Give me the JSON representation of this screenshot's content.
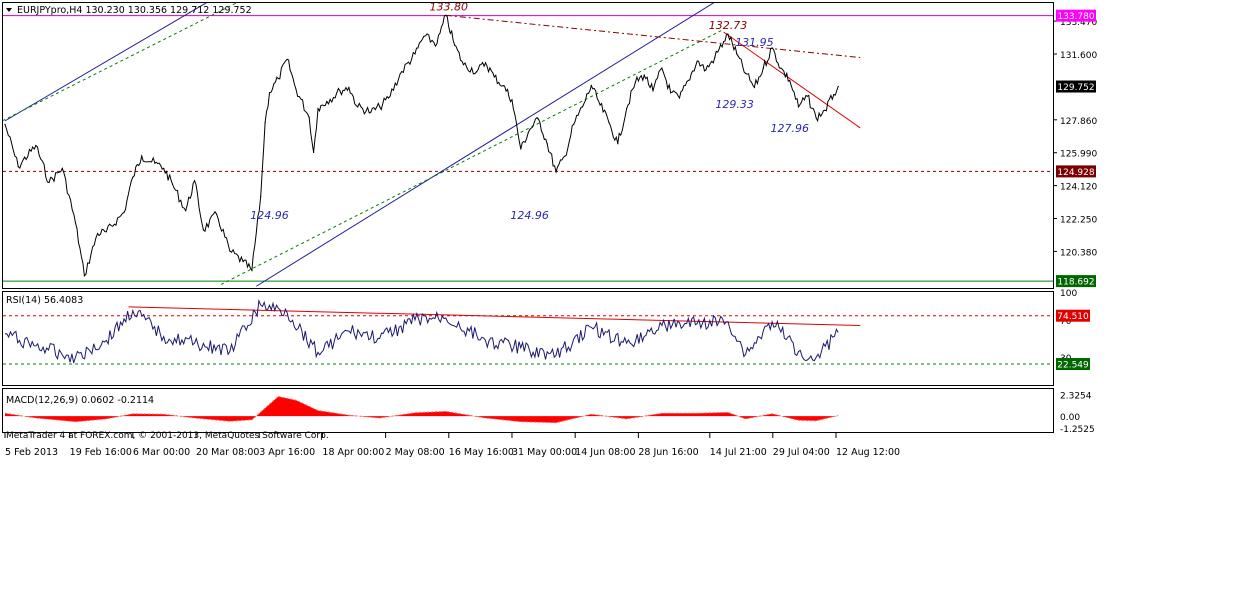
{
  "colors": {
    "price_line": "#000000",
    "level_red": "#8b0000",
    "trend_red": "#e00000",
    "trend_blue": "#1c1c9a",
    "channel_green": "#008000",
    "resistance_magenta": "#d000d0",
    "label_blue": "#2a2ab0",
    "macd_hist": "#ff0000",
    "rsi_line": "#1a1a6e",
    "badge_magenta": "#ff00ff",
    "badge_dark": "#000000",
    "badge_darkred": "#7a0000",
    "badge_green": "#006600",
    "badge_red": "#e00000"
  },
  "main_panel": {
    "symbol_header": "EURJPYpro,H4  130.230 130.356 129.712 129.752",
    "menu_arrow_icon": "triangle-down-icon"
  },
  "rsi_panel": {
    "header": "RSI(14) 56.4083"
  },
  "macd_panel": {
    "header": "MACD(12,26,9) 0.0602 -0.2114",
    "copyright": "MetaTrader 4 at FOREX.com, © 2001-2013, MetaQuotes Software Corp."
  },
  "chart_data": [
    {
      "type": "line",
      "title": "EURJPYpro,H4",
      "ohlc_last": {
        "open": 130.23,
        "high": 130.356,
        "low": 129.712,
        "close": 129.752
      },
      "x_tick_labels": [
        "5 Feb 2013",
        "19 Feb 16:00",
        "6 Mar 00:00",
        "20 Mar 08:00",
        "3 Apr 16:00",
        "18 Apr 00:00",
        "2 May 08:00",
        "16 May 16:00",
        "31 May 00:00",
        "14 Jun 08:00",
        "28 Jun 16:00",
        "14 Jul 21:00",
        "29 Jul 04:00",
        "12 Aug 12:00"
      ],
      "y_tick_labels": [
        "133.470",
        "131.600",
        "127.860",
        "125.990",
        "124.120",
        "122.250",
        "120.380"
      ],
      "ylim": [
        118.3,
        134.5
      ],
      "price_labels": [
        {
          "label": "133.780",
          "value": 133.78,
          "kind": "magenta"
        },
        {
          "label": "129.752",
          "value": 129.752,
          "kind": "dark"
        },
        {
          "label": "124.928",
          "value": 124.928,
          "kind": "darkred"
        },
        {
          "label": "118.692",
          "value": 118.692,
          "kind": "green"
        }
      ],
      "annotations": [
        {
          "text": "133.80",
          "x": "16 May 16:00",
          "kind": "peak"
        },
        {
          "text": "132.73",
          "x": "19 Jul 00:00",
          "kind": "peak"
        },
        {
          "text": "131.95",
          "x": "25 Jul 00:00",
          "kind": "peak-blue"
        },
        {
          "text": "129.33",
          "x": "20 Jul 12:00",
          "kind": "level-blue"
        },
        {
          "text": "127.96",
          "x": "2 Aug 00:00",
          "kind": "level-blue"
        },
        {
          "text": "124.96",
          "x": "6 Apr 00:00",
          "kind": "level-blue"
        },
        {
          "text": "124.96",
          "x": "4 Jun 00:00",
          "kind": "level-blue"
        }
      ],
      "series": [
        {
          "close": [
            {
              "x": "5 Feb 2013",
              "y": 127.6
            },
            {
              "x": "8 Feb 2013",
              "y": 125.2
            },
            {
              "x": "12 Feb 2013",
              "y": 126.4
            },
            {
              "x": "15 Feb 2013",
              "y": 124.3
            },
            {
              "x": "18 Feb 2013",
              "y": 125.1
            },
            {
              "x": "21 Feb 2013",
              "y": 122.0
            },
            {
              "x": "23 Feb 2013",
              "y": 119.0
            },
            {
              "x": "26 Feb 2013",
              "y": 121.4
            },
            {
              "x": "28 Feb 2013",
              "y": 121.5
            },
            {
              "x": "4 Mar 2013",
              "y": 122.6
            },
            {
              "x": "6 Mar 2013",
              "y": 124.6
            },
            {
              "x": "8 Mar 2013",
              "y": 125.8
            },
            {
              "x": "11 Mar 2013",
              "y": 125.4
            },
            {
              "x": "13 Mar 2013",
              "y": 125.1
            },
            {
              "x": "15 Mar 2013",
              "y": 124.2
            },
            {
              "x": "18 Mar 2013",
              "y": 122.7
            },
            {
              "x": "20 Mar 2013",
              "y": 124.4
            },
            {
              "x": "22 Mar 2013",
              "y": 121.6
            },
            {
              "x": "25 Mar 2013",
              "y": 122.5
            },
            {
              "x": "28 Mar 2013",
              "y": 120.4
            },
            {
              "x": "31 Mar 2013",
              "y": 119.8
            },
            {
              "x": "2 Apr 2013",
              "y": 119.3
            },
            {
              "x": "4 Apr 2013",
              "y": 123.5
            },
            {
              "x": "5 Apr 2013",
              "y": 127.7
            },
            {
              "x": "6 Apr 2013",
              "y": 129.4
            },
            {
              "x": "8 Apr 2013",
              "y": 130.2
            },
            {
              "x": "10 Apr 2013",
              "y": 131.3
            },
            {
              "x": "12 Apr 2013",
              "y": 129.6
            },
            {
              "x": "15 Apr 2013",
              "y": 128.0
            },
            {
              "x": "16 Apr 2013",
              "y": 126.0
            },
            {
              "x": "17 Apr 2013",
              "y": 128.5
            },
            {
              "x": "19 Apr 2013",
              "y": 128.9
            },
            {
              "x": "22 Apr 2013",
              "y": 129.5
            },
            {
              "x": "24 Apr 2013",
              "y": 129.7
            },
            {
              "x": "26 Apr 2013",
              "y": 128.6
            },
            {
              "x": "29 Apr 2013",
              "y": 128.3
            },
            {
              "x": "1 May 2013",
              "y": 128.6
            },
            {
              "x": "3 May 2013",
              "y": 129.1
            },
            {
              "x": "6 May 2013",
              "y": 130.6
            },
            {
              "x": "9 May 2013",
              "y": 131.6
            },
            {
              "x": "11 May 2013",
              "y": 132.6
            },
            {
              "x": "14 May 2013",
              "y": 132.2
            },
            {
              "x": "16 May 2013",
              "y": 133.8
            },
            {
              "x": "18 May 2013",
              "y": 132.1
            },
            {
              "x": "20 May 2013",
              "y": 131.0
            },
            {
              "x": "23 May 2013",
              "y": 130.6
            },
            {
              "x": "25 May 2013",
              "y": 131.1
            },
            {
              "x": "27 May 2013",
              "y": 130.3
            },
            {
              "x": "29 May 2013",
              "y": 129.8
            },
            {
              "x": "31 May 2013",
              "y": 129.0
            },
            {
              "x": "2 Jun 2013",
              "y": 126.2
            },
            {
              "x": "4 Jun 2013",
              "y": 127.3
            },
            {
              "x": "6 Jun 2013",
              "y": 127.9
            },
            {
              "x": "8 Jun 2013",
              "y": 126.5
            },
            {
              "x": "10 Jun 2013",
              "y": 124.9
            },
            {
              "x": "12 Jun 2013",
              "y": 125.8
            },
            {
              "x": "14 Jun 2013",
              "y": 127.6
            },
            {
              "x": "16 Jun 2013",
              "y": 128.6
            },
            {
              "x": "18 Jun 2013",
              "y": 129.8
            },
            {
              "x": "20 Jun 2013",
              "y": 128.7
            },
            {
              "x": "22 Jun 2013",
              "y": 127.7
            },
            {
              "x": "24 Jun 2013",
              "y": 126.5
            },
            {
              "x": "26 Jun 2013",
              "y": 128.5
            },
            {
              "x": "28 Jun 2013",
              "y": 130.0
            },
            {
              "x": "30 Jun 2013",
              "y": 130.4
            },
            {
              "x": "2 Jul 2013",
              "y": 129.5
            },
            {
              "x": "4 Jul 2013",
              "y": 130.8
            },
            {
              "x": "6 Jul 2013",
              "y": 129.4
            },
            {
              "x": "8 Jul 2013",
              "y": 129.1
            },
            {
              "x": "10 Jul 2013",
              "y": 130.1
            },
            {
              "x": "12 Jul 2013",
              "y": 131.2
            },
            {
              "x": "14 Jul 2013",
              "y": 130.7
            },
            {
              "x": "16 Jul 2013",
              "y": 131.4
            },
            {
              "x": "18 Jul 2013",
              "y": 132.3
            },
            {
              "x": "19 Jul 2013",
              "y": 132.73
            },
            {
              "x": "21 Jul 2013",
              "y": 131.6
            },
            {
              "x": "23 Jul 2013",
              "y": 130.5
            },
            {
              "x": "25 Jul 2013",
              "y": 129.7
            },
            {
              "x": "27 Jul 2013",
              "y": 130.8
            },
            {
              "x": "29 Jul 2013",
              "y": 131.95
            },
            {
              "x": "31 Jul 2013",
              "y": 130.8
            },
            {
              "x": "2 Aug 2013",
              "y": 130.1
            },
            {
              "x": "4 Aug 2013",
              "y": 128.6
            },
            {
              "x": "6 Aug 2013",
              "y": 129.2
            },
            {
              "x": "8 Aug 2013",
              "y": 127.96
            },
            {
              "x": "10 Aug 2013",
              "y": 128.4
            },
            {
              "x": "12 Aug 2013",
              "y": 129.3
            },
            {
              "x": "13 Aug 2013",
              "y": 129.752
            }
          ]
        }
      ],
      "horizontal_lines": [
        {
          "value": 133.78,
          "style": "solid",
          "color_key": "resistance_magenta"
        },
        {
          "value": 124.928,
          "style": "dashed",
          "color_key": "level_red"
        },
        {
          "value": 118.692,
          "style": "solid",
          "color_key": "channel_green"
        }
      ],
      "trend_lines": [
        {
          "from": {
            "x": "5 Feb 2013",
            "y": 127.8
          },
          "to": {
            "x": "12 Apr 2013",
            "y": 137.5
          },
          "style": "solid",
          "color_key": "trend_blue"
        },
        {
          "from": {
            "x": "3 Apr 2013",
            "y": 118.4
          },
          "to": {
            "x": "4 Aug 2013",
            "y": 137.5
          },
          "style": "solid",
          "color_key": "trend_blue"
        },
        {
          "from": {
            "x": "2 Feb 2013",
            "y": 127.5
          },
          "to": {
            "x": "4 Apr 2013",
            "y": 135.2
          },
          "style": "dashed",
          "color_key": "channel_green"
        },
        {
          "from": {
            "x": "26 Mar 2013",
            "y": 118.5
          },
          "to": {
            "x": "18 Jul 2013",
            "y": 133.0
          },
          "style": "dashed",
          "color_key": "channel_green"
        },
        {
          "from": {
            "x": "16 May 2013",
            "y": 133.8
          },
          "to": {
            "x": "18 Aug 2013",
            "y": 131.4
          },
          "style": "dashdot",
          "color_key": "level_red"
        },
        {
          "from": {
            "x": "18 Jul 2013",
            "y": 132.85
          },
          "to": {
            "x": "18 Aug 2013",
            "y": 127.4
          },
          "style": "solid",
          "color_key": "trend_red"
        }
      ]
    },
    {
      "type": "line",
      "title": "RSI(14) 56.4083",
      "ylim": [
        0,
        100
      ],
      "y_tick_labels": [
        "100",
        "70",
        "30"
      ],
      "levels": [
        {
          "label": "74.510",
          "value": 74.51,
          "style": "dashed",
          "color_key": "trend_red"
        },
        {
          "label": "22.549",
          "value": 22.549,
          "style": "dashed",
          "color_key": "channel_green"
        }
      ],
      "trend_line": {
        "from": {
          "x": "5 Mar 2013",
          "y": 84
        },
        "to": {
          "x": "18 Aug 2013",
          "y": 64
        }
      },
      "series": [
        {
          "values": [
            {
              "x": "5 Feb 2013",
              "y": 55
            },
            {
              "x": "12 Feb 2013",
              "y": 42
            },
            {
              "x": "21 Feb 2013",
              "y": 30
            },
            {
              "x": "28 Feb 2013",
              "y": 48
            },
            {
              "x": "6 Mar 2013",
              "y": 80
            },
            {
              "x": "13 Mar 2013",
              "y": 52
            },
            {
              "x": "20 Mar 2013",
              "y": 45
            },
            {
              "x": "28 Mar 2013",
              "y": 36
            },
            {
              "x": "4 Apr 2013",
              "y": 86
            },
            {
              "x": "10 Apr 2013",
              "y": 78
            },
            {
              "x": "17 Apr 2013",
              "y": 35
            },
            {
              "x": "24 Apr 2013",
              "y": 58
            },
            {
              "x": "1 May 2013",
              "y": 50
            },
            {
              "x": "9 May 2013",
              "y": 70
            },
            {
              "x": "16 May 2013",
              "y": 72
            },
            {
              "x": "25 May 2013",
              "y": 48
            },
            {
              "x": "2 Jun 2013",
              "y": 40
            },
            {
              "x": "10 Jun 2013",
              "y": 32
            },
            {
              "x": "18 Jun 2013",
              "y": 62
            },
            {
              "x": "26 Jun 2013",
              "y": 45
            },
            {
              "x": "4 Jul 2013",
              "y": 64
            },
            {
              "x": "12 Jul 2013",
              "y": 66
            },
            {
              "x": "19 Jul 2013",
              "y": 68
            },
            {
              "x": "23 Jul 2013",
              "y": 33
            },
            {
              "x": "29 Jul 2013",
              "y": 68
            },
            {
              "x": "4 Aug 2013",
              "y": 36
            },
            {
              "x": "8 Aug 2013",
              "y": 30
            },
            {
              "x": "13 Aug 2013",
              "y": 56.4
            }
          ]
        }
      ]
    },
    {
      "type": "area",
      "title": "MACD(12,26,9) 0.0602 -0.2114",
      "ylim": [
        -1.7,
        2.9
      ],
      "y_tick_labels": [
        "2.3254",
        "0.00",
        "-1.2525"
      ],
      "series": [
        {
          "values": [
            {
              "x": "5 Feb 2013",
              "y": 0.3
            },
            {
              "x": "12 Feb 2013",
              "y": -0.2
            },
            {
              "x": "21 Feb 2013",
              "y": -0.6
            },
            {
              "x": "28 Feb 2013",
              "y": -0.3
            },
            {
              "x": "6 Mar 2013",
              "y": 0.25
            },
            {
              "x": "13 Mar 2013",
              "y": 0.2
            },
            {
              "x": "20 Mar 2013",
              "y": -0.2
            },
            {
              "x": "28 Mar 2013",
              "y": -0.55
            },
            {
              "x": "2 Apr 2013",
              "y": -0.4
            },
            {
              "x": "8 Apr 2013",
              "y": 2.1
            },
            {
              "x": "12 Apr 2013",
              "y": 1.7
            },
            {
              "x": "17 Apr 2013",
              "y": 0.6
            },
            {
              "x": "24 Apr 2013",
              "y": 0.1
            },
            {
              "x": "1 May 2013",
              "y": -0.2
            },
            {
              "x": "9 May 2013",
              "y": 0.35
            },
            {
              "x": "16 May 2013",
              "y": 0.5
            },
            {
              "x": "25 May 2013",
              "y": -0.2
            },
            {
              "x": "2 Jun 2013",
              "y": -0.6
            },
            {
              "x": "10 Jun 2013",
              "y": -0.7
            },
            {
              "x": "18 Jun 2013",
              "y": 0.2
            },
            {
              "x": "26 Jun 2013",
              "y": -0.3
            },
            {
              "x": "4 Jul 2013",
              "y": 0.3
            },
            {
              "x": "12 Jul 2013",
              "y": 0.3
            },
            {
              "x": "19 Jul 2013",
              "y": 0.4
            },
            {
              "x": "23 Jul 2013",
              "y": -0.3
            },
            {
              "x": "29 Jul 2013",
              "y": 0.25
            },
            {
              "x": "4 Aug 2013",
              "y": -0.45
            },
            {
              "x": "8 Aug 2013",
              "y": -0.5
            },
            {
              "x": "13 Aug 2013",
              "y": 0.06
            }
          ]
        }
      ]
    }
  ]
}
